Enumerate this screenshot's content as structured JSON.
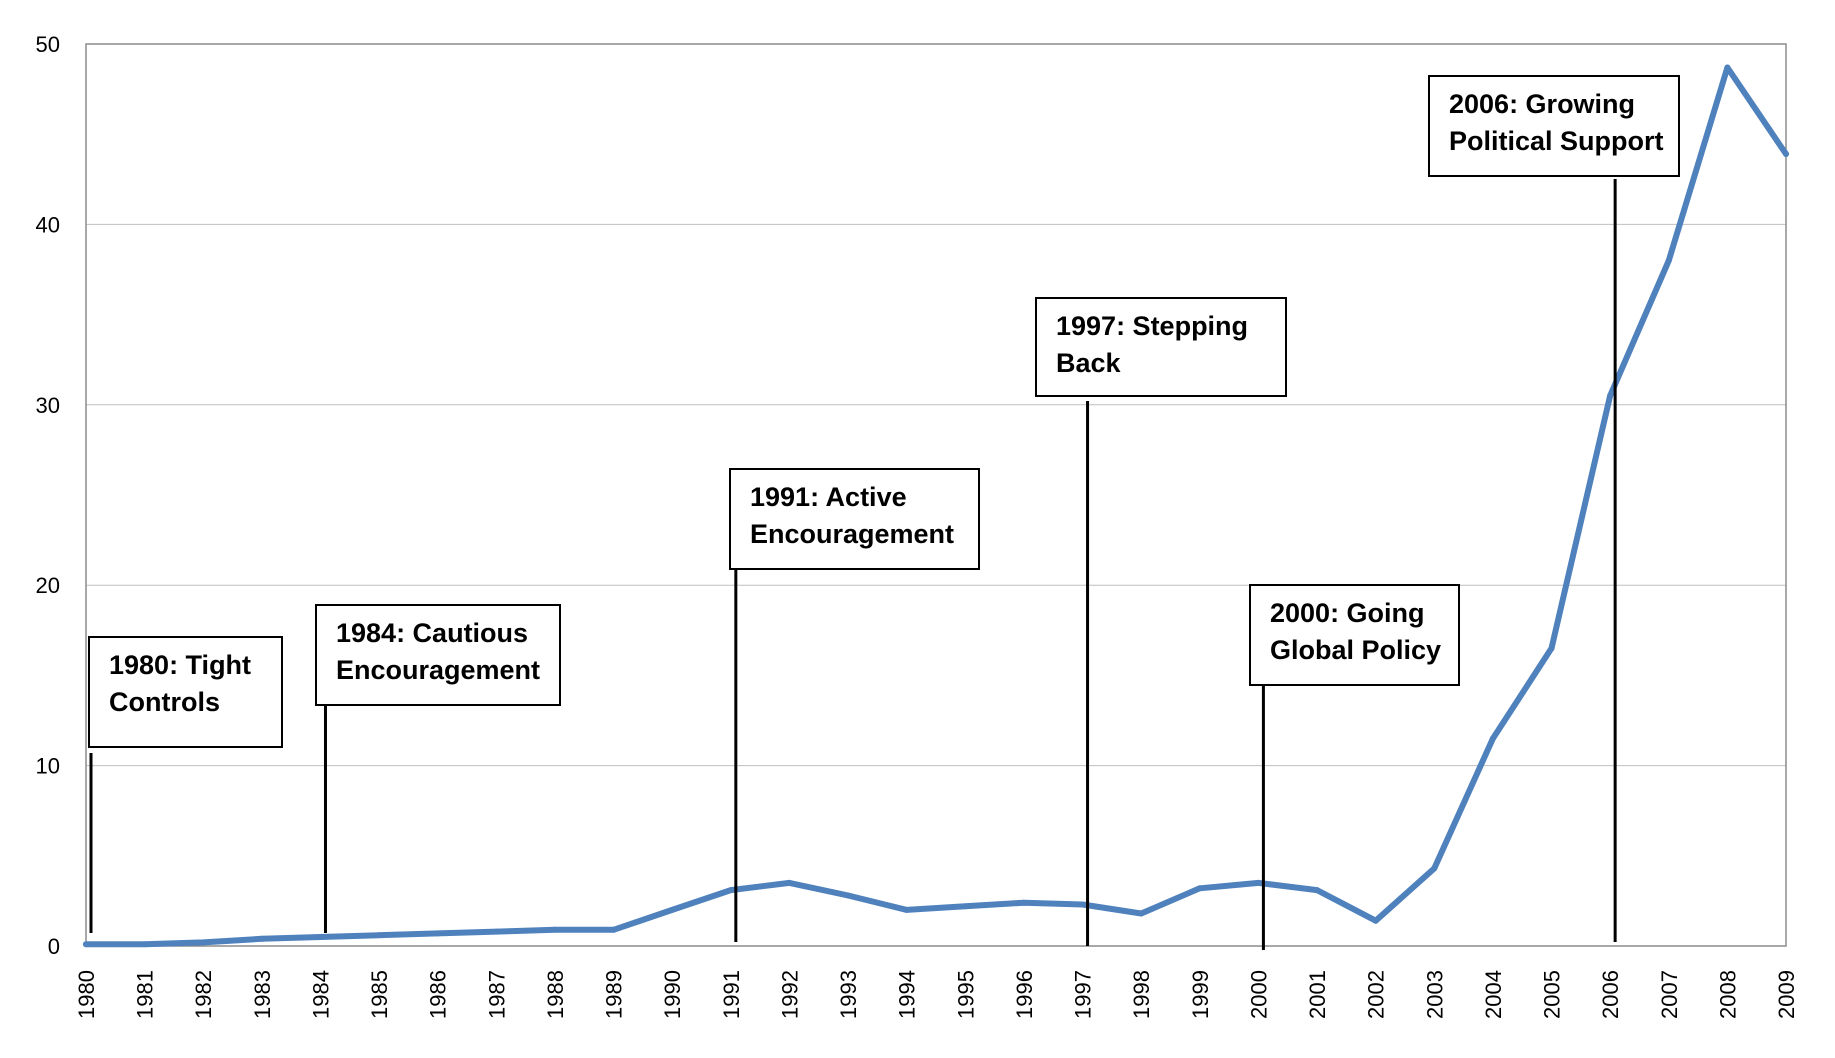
{
  "chart_data": {
    "type": "line",
    "title": "",
    "xlabel": "",
    "ylabel": "",
    "ylim": [
      0,
      50
    ],
    "yticks": [
      0,
      10,
      20,
      30,
      40,
      50
    ],
    "grid": true,
    "legend": "none",
    "line_color": "#4f81bd",
    "x": [
      "1980",
      "1981",
      "1982",
      "1983",
      "1984",
      "1985",
      "1986",
      "1987",
      "1988",
      "1989",
      "1990",
      "1991",
      "1992",
      "1993",
      "1994",
      "1995",
      "1996",
      "1997",
      "1998",
      "1999",
      "2000",
      "2001",
      "2002",
      "2003",
      "2004",
      "2005",
      "2006",
      "2007",
      "2008",
      "2009"
    ],
    "series": [
      {
        "values": [
          0.1,
          0.1,
          0.2,
          0.4,
          0.5,
          0.6,
          0.7,
          0.8,
          0.9,
          0.9,
          2.0,
          3.1,
          3.5,
          2.8,
          2.0,
          2.2,
          2.4,
          2.3,
          1.8,
          3.2,
          3.5,
          3.1,
          1.4,
          4.3,
          11.5,
          16.5,
          30.5,
          38.0,
          48.7,
          43.9
        ]
      }
    ],
    "annotations": [
      {
        "year": "1980",
        "lines": [
          "1980: Tight",
          "Controls"
        ]
      },
      {
        "year": "1984",
        "lines": [
          "1984: Cautious",
          "Encouragement"
        ]
      },
      {
        "year": "1991",
        "lines": [
          "1991: Active",
          "Encouragement"
        ]
      },
      {
        "year": "1997",
        "lines": [
          "1997: Stepping",
          "Back"
        ]
      },
      {
        "year": "2000",
        "lines": [
          "2000: Going",
          "Global Policy"
        ]
      },
      {
        "year": "2006",
        "lines": [
          "2006: Growing",
          "Political Support"
        ]
      }
    ]
  }
}
